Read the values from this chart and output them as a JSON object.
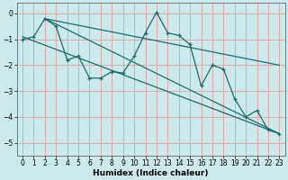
{
  "xlabel": "Humidex (Indice chaleur)",
  "xlim": [
    -0.5,
    23.5
  ],
  "ylim": [
    -5.5,
    0.4
  ],
  "yticks": [
    0,
    -1,
    -2,
    -3,
    -4,
    -5
  ],
  "xticks": [
    0,
    1,
    2,
    3,
    4,
    5,
    6,
    7,
    8,
    9,
    10,
    11,
    12,
    13,
    14,
    15,
    16,
    17,
    18,
    19,
    20,
    21,
    22,
    23
  ],
  "bg_color": "#cceaea",
  "grid_color": "#ddaaaa",
  "line_color": "#1a6b6b",
  "zigzag_x": [
    0,
    1,
    2,
    3,
    4,
    5,
    6,
    7,
    8,
    9,
    10,
    11,
    12,
    13,
    14,
    15,
    16,
    17,
    18,
    19,
    20,
    21,
    22,
    23
  ],
  "zigzag_y": [
    -1.0,
    -0.9,
    -0.2,
    -0.5,
    -1.8,
    -1.65,
    -2.5,
    -2.5,
    -2.25,
    -2.3,
    -1.65,
    -0.75,
    0.05,
    -0.75,
    -0.85,
    -1.2,
    -2.8,
    -2.0,
    -2.15,
    -3.3,
    -4.0,
    -3.75,
    -4.5,
    -4.65
  ],
  "trend1_x": [
    0,
    23
  ],
  "trend1_y": [
    -0.9,
    -4.65
  ],
  "trend2_x": [
    2,
    23
  ],
  "trend2_y": [
    -0.2,
    -4.65
  ],
  "trend3_x": [
    2,
    23
  ],
  "trend3_y": [
    -0.2,
    -2.0
  ]
}
